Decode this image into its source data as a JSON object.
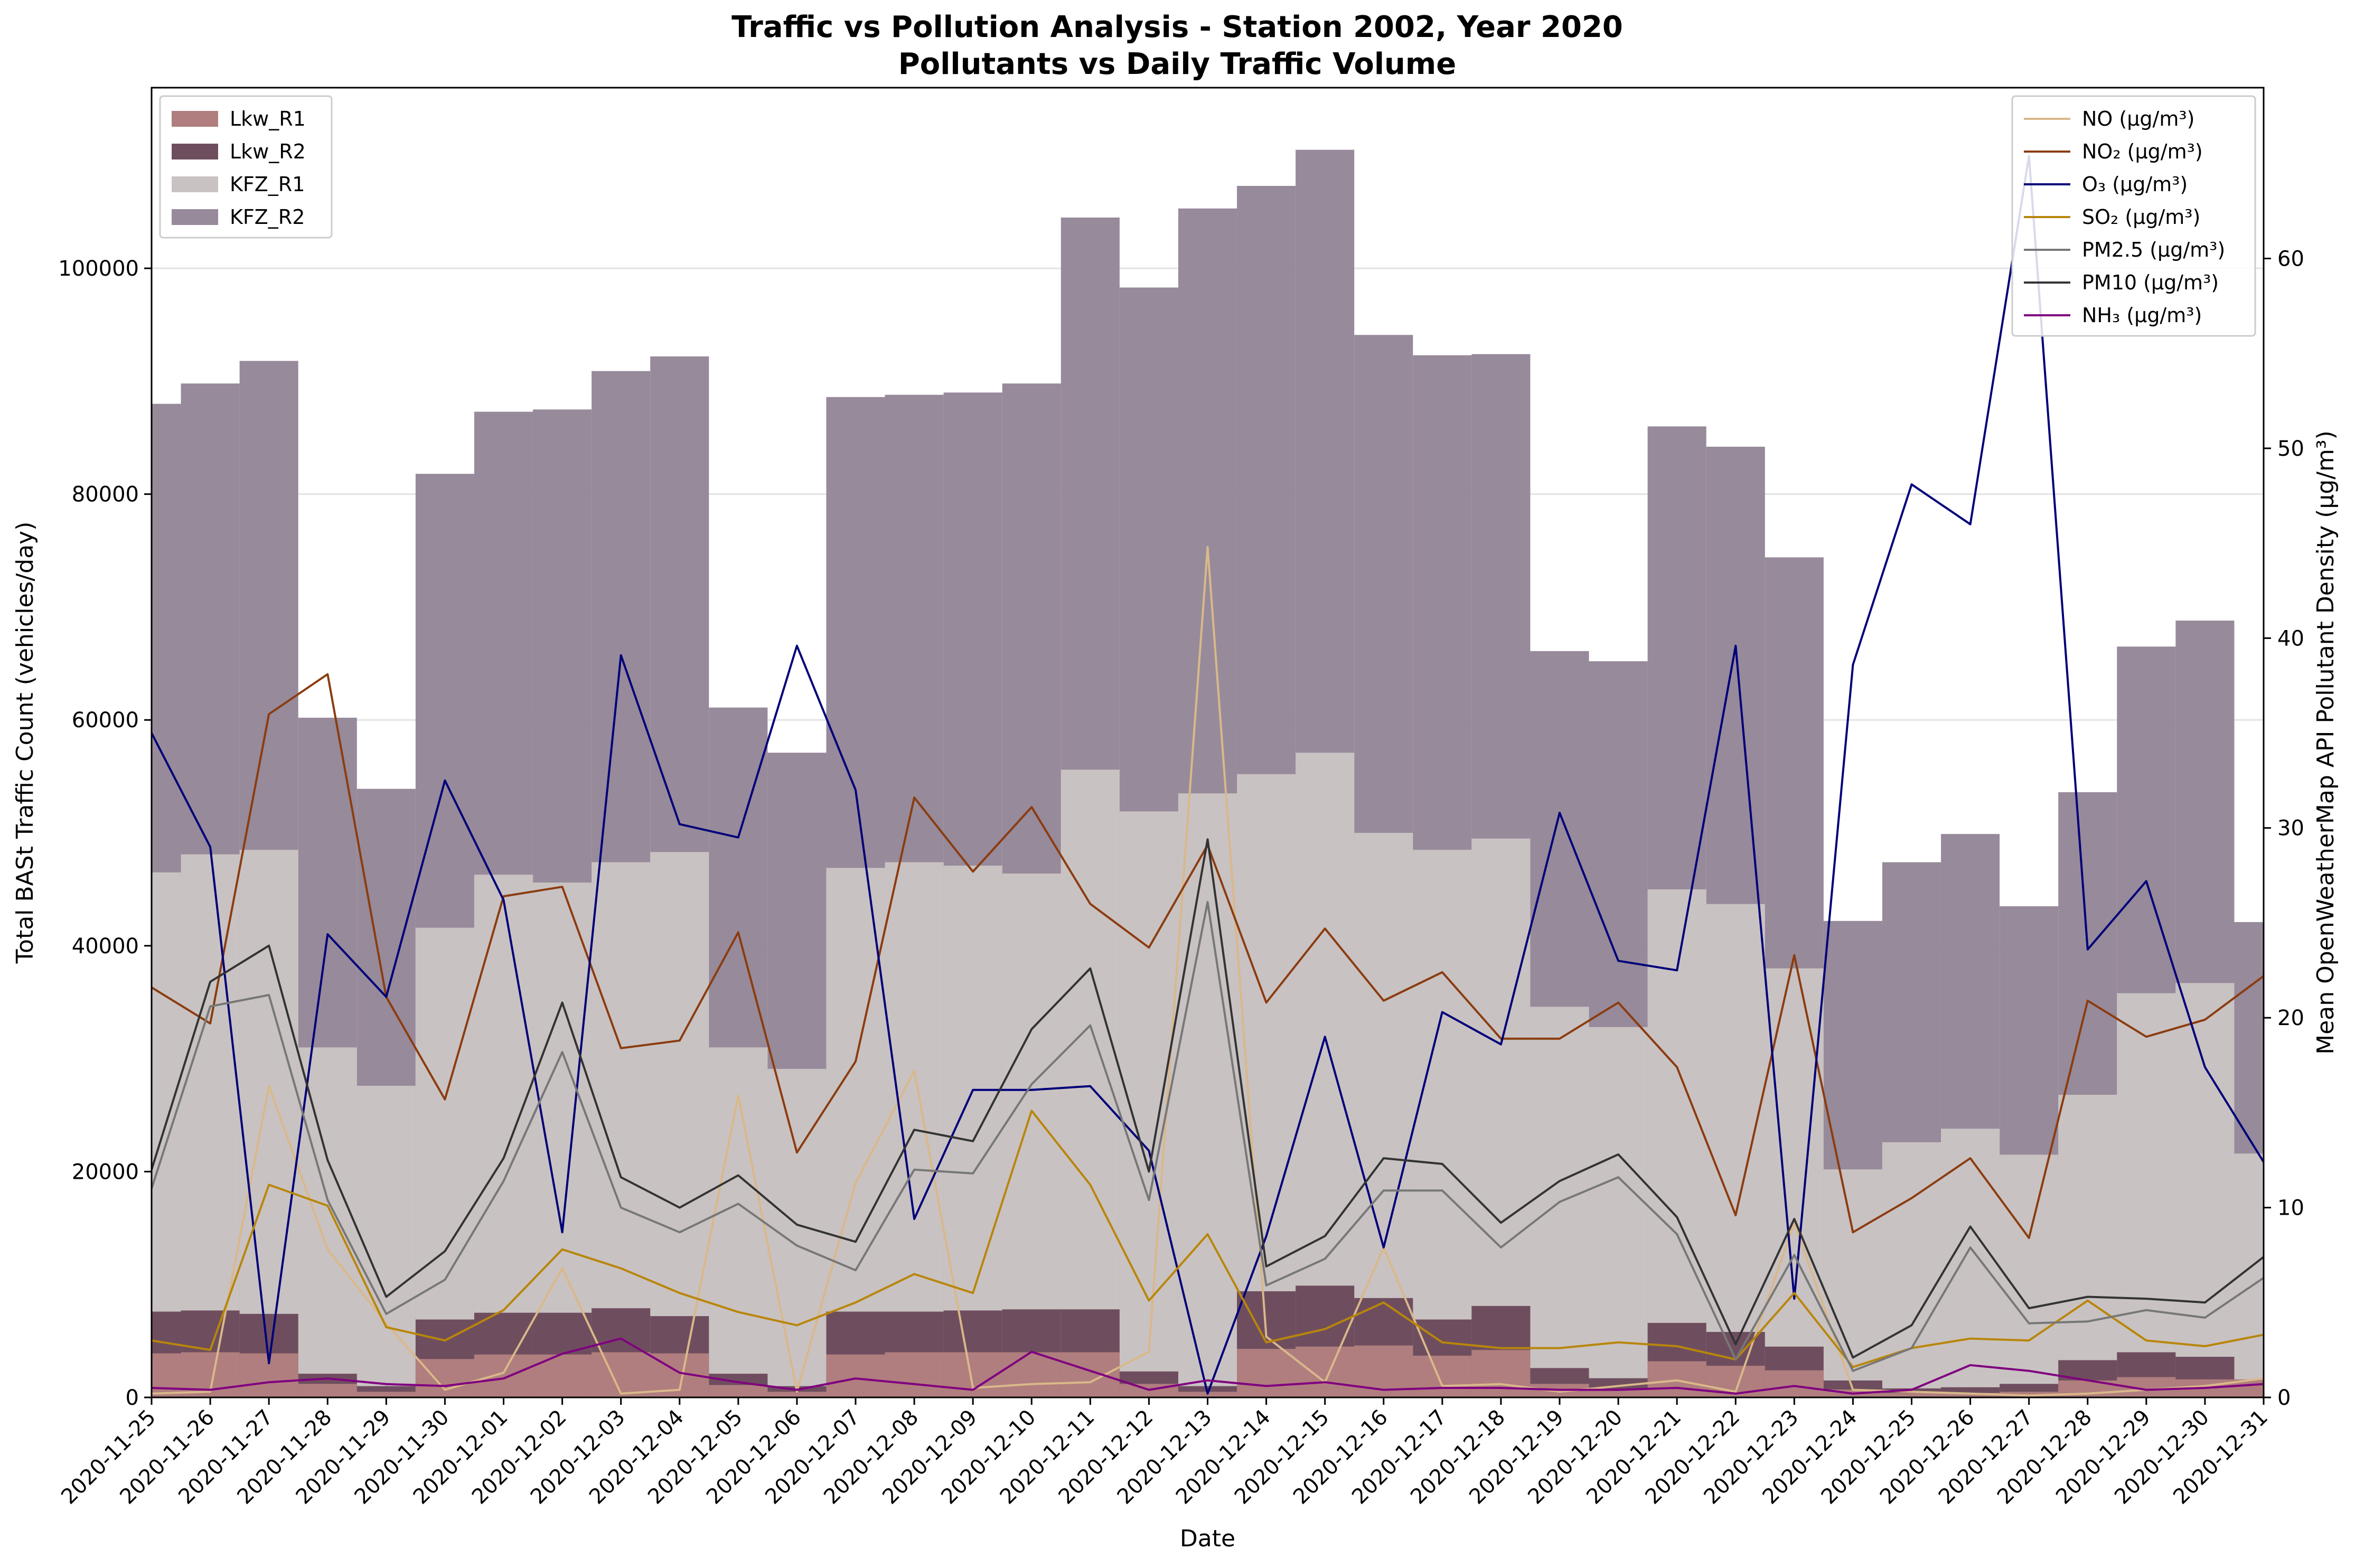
{
  "chart_data": {
    "type": "bar+line",
    "title": "Traffic vs Pollution Analysis - Station 2002, Year 2020",
    "subtitle": "Pollutants vs Daily Traffic Volume",
    "xlabel": "Date",
    "ylabel_left": "Total BASt Traffic Count (vehicles/day)",
    "ylabel_right": "Mean OpenWeatherMap API Pollutant Density (µg/m³)",
    "ylim_left": [
      0,
      116000
    ],
    "ylim_right": [
      0,
      69
    ],
    "yticks_left": [
      0,
      20000,
      40000,
      60000,
      80000,
      100000
    ],
    "yticks_right": [
      0,
      10,
      20,
      30,
      40,
      50,
      60
    ],
    "grid": "horizontal",
    "x": [
      "2020-11-25",
      "2020-11-26",
      "2020-11-27",
      "2020-11-28",
      "2020-11-29",
      "2020-11-30",
      "2020-12-01",
      "2020-12-02",
      "2020-12-03",
      "2020-12-04",
      "2020-12-05",
      "2020-12-06",
      "2020-12-07",
      "2020-12-08",
      "2020-12-09",
      "2020-12-10",
      "2020-12-11",
      "2020-12-12",
      "2020-12-13",
      "2020-12-14",
      "2020-12-15",
      "2020-12-16",
      "2020-12-17",
      "2020-12-18",
      "2020-12-19",
      "2020-12-20",
      "2020-12-21",
      "2020-12-22",
      "2020-12-23",
      "2020-12-24",
      "2020-12-25",
      "2020-12-26",
      "2020-12-27",
      "2020-12-28",
      "2020-12-29",
      "2020-12-30",
      "2020-12-31"
    ],
    "traffic_legend_placement": "top-left",
    "pollutant_legend_placement": "top-right",
    "traffic_series": [
      {
        "name": "Lkw_R1",
        "color": "#b07e7e",
        "values": [
          3900,
          4000,
          3900,
          1200,
          500,
          3400,
          3800,
          3800,
          4000,
          3900,
          1100,
          500,
          3800,
          4000,
          4000,
          4000,
          4000,
          1200,
          500,
          4300,
          4500,
          4600,
          3700,
          4200,
          1200,
          700,
          3200,
          2800,
          2400,
          700,
          400,
          400,
          500,
          1500,
          1800,
          1600,
          1600
        ]
      },
      {
        "name": "Lkw_R2",
        "color": "#6e4e5e",
        "values": [
          7600,
          7700,
          7400,
          2100,
          1000,
          6900,
          7500,
          7500,
          7900,
          7200,
          2100,
          1000,
          7600,
          7600,
          7700,
          7800,
          7800,
          2300,
          1000,
          9400,
          9900,
          8800,
          6900,
          8100,
          2600,
          1700,
          6600,
          5800,
          4500,
          1500,
          800,
          900,
          1200,
          3300,
          4000,
          3600,
          1100
        ]
      },
      {
        "name": "KFZ_R1",
        "color": "#c9c2c2",
        "values": [
          46500,
          48100,
          48500,
          31000,
          27600,
          41600,
          46300,
          45600,
          47400,
          48300,
          31000,
          29100,
          46900,
          47400,
          47100,
          46400,
          55600,
          51900,
          53500,
          55200,
          57100,
          50000,
          48500,
          49500,
          34600,
          32800,
          45000,
          43700,
          38000,
          20200,
          22600,
          23800,
          21500,
          26800,
          35800,
          36700,
          21600
        ]
      },
      {
        "name": "KFZ_R2",
        "color": "#978a9a",
        "values": [
          88000,
          89800,
          91800,
          60200,
          53900,
          81800,
          87300,
          87500,
          90900,
          92200,
          61100,
          57100,
          88600,
          88800,
          89000,
          89800,
          104500,
          98300,
          105300,
          107300,
          110500,
          94100,
          92300,
          92400,
          66100,
          65200,
          86000,
          84200,
          74400,
          42200,
          47400,
          49900,
          43500,
          53600,
          66500,
          68800,
          42100
        ]
      }
    ],
    "pollutant_series": [
      {
        "name": "NO (µg/m³)",
        "color": "#d9b88a",
        "values": [
          0.2,
          0.3,
          16.4,
          7.8,
          3.9,
          0.4,
          1.3,
          6.8,
          0.2,
          0.4,
          15.9,
          0.3,
          11.3,
          17.2,
          0.5,
          0.7,
          0.8,
          2.4,
          44.8,
          3.2,
          0.8,
          7.9,
          0.6,
          0.7,
          0.3,
          0.6,
          0.9,
          0.3,
          9.2,
          0.4,
          0.3,
          0.2,
          0.1,
          0.2,
          0.4,
          0.6,
          1.0
        ]
      },
      {
        "name": "NO₂ (µg/m³)",
        "color": "#8b3c10",
        "values": [
          21.6,
          19.7,
          36.0,
          38.1,
          21.1,
          15.7,
          26.4,
          26.9,
          18.4,
          18.8,
          24.5,
          12.9,
          17.7,
          31.6,
          27.7,
          31.1,
          26.0,
          23.7,
          29.1,
          20.8,
          24.7,
          20.9,
          22.4,
          18.9,
          18.9,
          20.8,
          17.4,
          9.6,
          23.3,
          8.7,
          10.5,
          12.6,
          8.4,
          20.9,
          19.0,
          19.9,
          22.2
        ]
      },
      {
        "name": "O₃ (µg/m³)",
        "color": "#00007a",
        "values": [
          35.0,
          29.0,
          1.8,
          24.4,
          21.1,
          32.5,
          26.2,
          8.7,
          39.1,
          30.2,
          29.5,
          39.6,
          32.0,
          9.4,
          16.2,
          16.2,
          16.4,
          13.0,
          0.2,
          8.5,
          19.0,
          7.9,
          20.3,
          18.6,
          30.8,
          23.0,
          22.5,
          39.6,
          5.2,
          38.6,
          48.1,
          46.0,
          65.4,
          23.6,
          27.2,
          17.4,
          12.4
        ]
      },
      {
        "name": "SO₂ (µg/m³)",
        "color": "#b8860b",
        "values": [
          3.0,
          2.5,
          11.2,
          10.1,
          3.7,
          3.0,
          4.6,
          7.8,
          6.8,
          5.5,
          4.5,
          3.8,
          5.0,
          6.5,
          5.5,
          15.1,
          11.2,
          5.1,
          8.6,
          2.9,
          3.6,
          5.0,
          2.9,
          2.6,
          2.6,
          2.9,
          2.7,
          2.0,
          5.5,
          1.6,
          2.6,
          3.1,
          3.0,
          5.1,
          3.0,
          2.7,
          3.3
        ]
      },
      {
        "name": "PM2.5 (µg/m³)",
        "color": "#777777",
        "values": [
          11.0,
          20.6,
          21.2,
          10.4,
          4.4,
          6.2,
          11.4,
          18.2,
          10.0,
          8.7,
          10.2,
          8.0,
          6.7,
          12.0,
          11.8,
          16.5,
          19.6,
          10.4,
          26.1,
          5.9,
          7.3,
          10.9,
          10.9,
          7.9,
          10.3,
          11.6,
          8.6,
          2.0,
          7.5,
          1.4,
          2.6,
          7.9,
          3.9,
          4.0,
          4.6,
          4.2,
          6.3
        ]
      },
      {
        "name": "PM10 (µg/m³)",
        "color": "#333333",
        "values": [
          12.0,
          21.9,
          23.8,
          12.5,
          5.3,
          7.7,
          12.6,
          20.8,
          11.6,
          10.0,
          11.7,
          9.1,
          8.2,
          14.1,
          13.5,
          19.4,
          22.6,
          11.9,
          29.4,
          6.9,
          8.5,
          12.6,
          12.3,
          9.2,
          11.4,
          12.8,
          9.5,
          2.8,
          9.4,
          2.1,
          3.8,
          9.0,
          4.7,
          5.3,
          5.2,
          5.0,
          7.4
        ]
      },
      {
        "name": "NH₃ (µg/m³)",
        "color": "#800080",
        "values": [
          0.5,
          0.4,
          0.8,
          1.0,
          0.7,
          0.6,
          1.0,
          2.3,
          3.1,
          1.3,
          0.8,
          0.4,
          1.0,
          0.7,
          0.4,
          2.4,
          1.4,
          0.4,
          0.9,
          0.6,
          0.8,
          0.4,
          0.5,
          0.5,
          0.4,
          0.4,
          0.5,
          0.2,
          0.6,
          0.2,
          0.4,
          1.7,
          1.4,
          0.9,
          0.4,
          0.5,
          0.7
        ]
      }
    ]
  }
}
